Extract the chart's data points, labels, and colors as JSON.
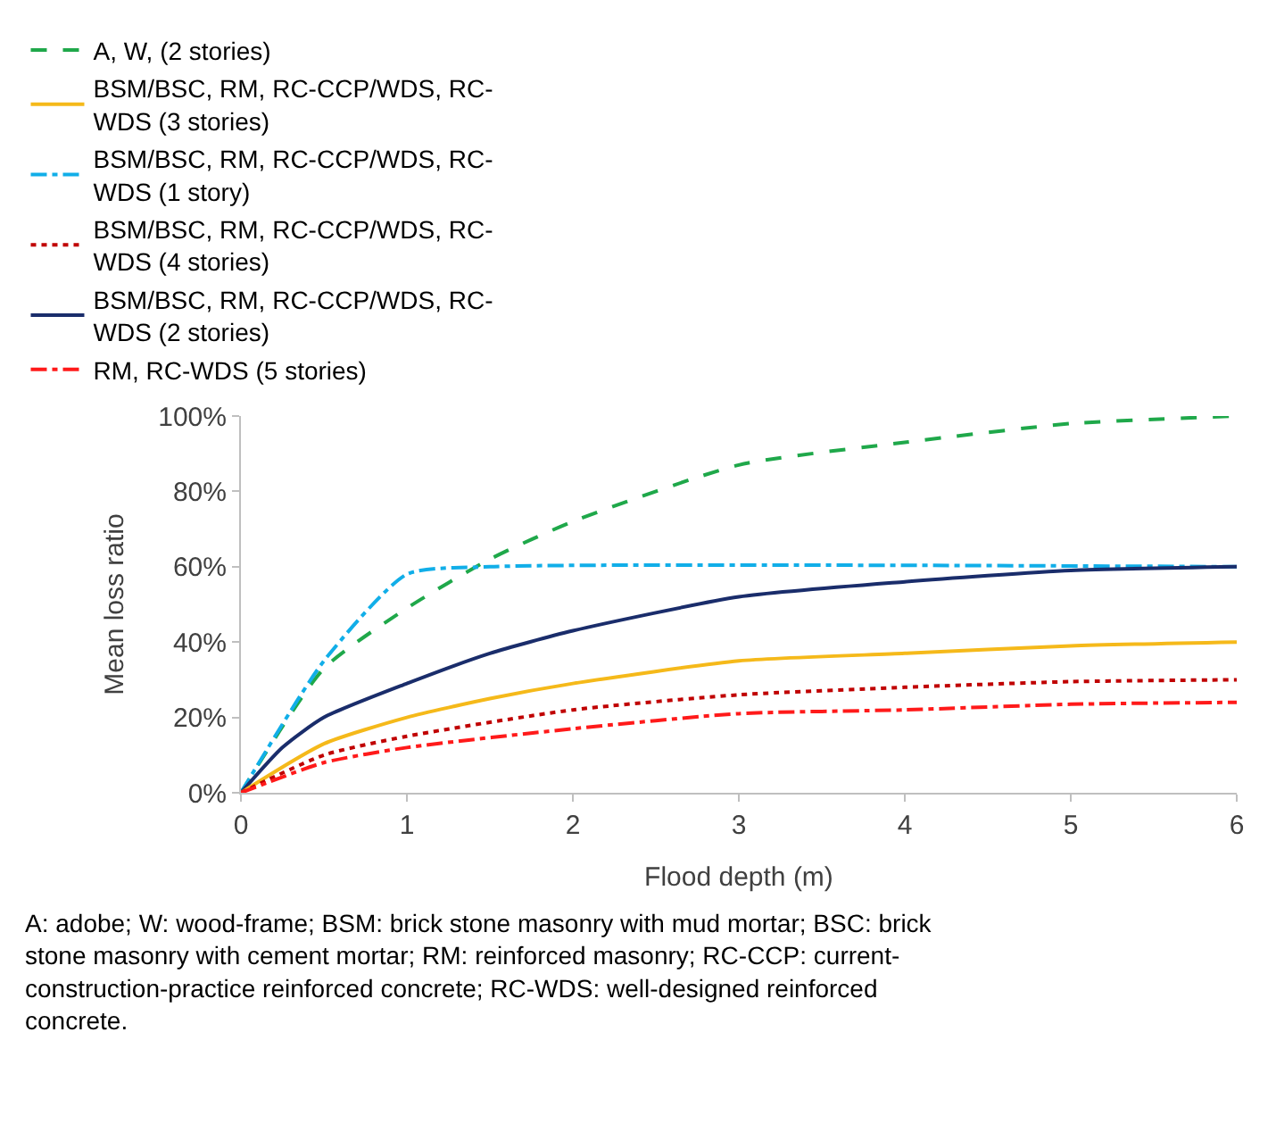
{
  "chart_data": {
    "type": "line",
    "xlabel": "Flood depth (m)",
    "ylabel": "Mean loss ratio",
    "xlim": [
      0,
      6
    ],
    "xticks": [
      0,
      1,
      2,
      3,
      4,
      5,
      6
    ],
    "ylim": [
      0,
      100
    ],
    "yticks": [
      {
        "value": 0,
        "label": "0%"
      },
      {
        "value": 20,
        "label": "20%"
      },
      {
        "value": 40,
        "label": "40%"
      },
      {
        "value": 60,
        "label": "60%"
      },
      {
        "value": 80,
        "label": "80%"
      },
      {
        "value": 100,
        "label": "100%"
      }
    ],
    "grid": false,
    "legend": "top",
    "marker": "none",
    "series": [
      {
        "name": "A, W, (2 stories)",
        "color": "#1fa84a",
        "line_style": "dashed",
        "x": [
          0,
          0.5,
          1,
          1.5,
          2,
          3,
          4,
          5,
          6
        ],
        "values": [
          0,
          33,
          49,
          62,
          72,
          87,
          93,
          98,
          100
        ]
      },
      {
        "name": "BSM/BSC, RM, RC-CCP/WDS, RC-WDS (1 story)",
        "color": "#11aee8",
        "line_style": "dashdot",
        "x": [
          0,
          0.5,
          1,
          1.5,
          6
        ],
        "values": [
          0,
          35,
          58,
          60,
          60
        ]
      },
      {
        "name": "BSM/BSC, RM, RC-CCP/WDS, RC-WDS (2 stories)",
        "color": "#1a2d6b",
        "line_style": "solid",
        "x": [
          0,
          0.25,
          0.5,
          1,
          1.5,
          2,
          3,
          4,
          5,
          6
        ],
        "values": [
          0,
          12,
          20,
          29,
          37,
          43,
          52,
          56,
          59,
          60
        ]
      },
      {
        "name": "BSM/BSC, RM, RC-CCP/WDS, RC-WDS (3 stories)",
        "color": "#f5b91a",
        "line_style": "solid",
        "x": [
          0,
          0.5,
          1,
          1.5,
          2,
          3,
          4,
          5,
          6
        ],
        "values": [
          0,
          13,
          20,
          25,
          29,
          35,
          37,
          39,
          40
        ]
      },
      {
        "name": "BSM/BSC, RM, RC-CCP/WDS, RC-WDS (4 stories)",
        "color": "#c00000",
        "line_style": "dotted",
        "x": [
          0,
          0.5,
          1,
          2,
          3,
          4,
          5,
          6
        ],
        "values": [
          0,
          10,
          15,
          22,
          26,
          28,
          29.5,
          30
        ]
      },
      {
        "name": "RM, RC-WDS (5 stories)",
        "color": "#ff1a1a",
        "line_style": "dashdot",
        "x": [
          0,
          0.5,
          1,
          2,
          3,
          4,
          5,
          6
        ],
        "values": [
          0,
          8,
          12,
          17,
          21,
          22,
          23.5,
          24
        ]
      }
    ],
    "annotations": [
      "A: adobe; W: wood-frame; BSM: brick stone masonry with mud mortar; BSC: brick stone masonry with cement mortar; RM: reinforced masonry; RC-CCP: current-construction-practice reinforced concrete; RC-WDS: well-designed reinforced concrete."
    ]
  }
}
